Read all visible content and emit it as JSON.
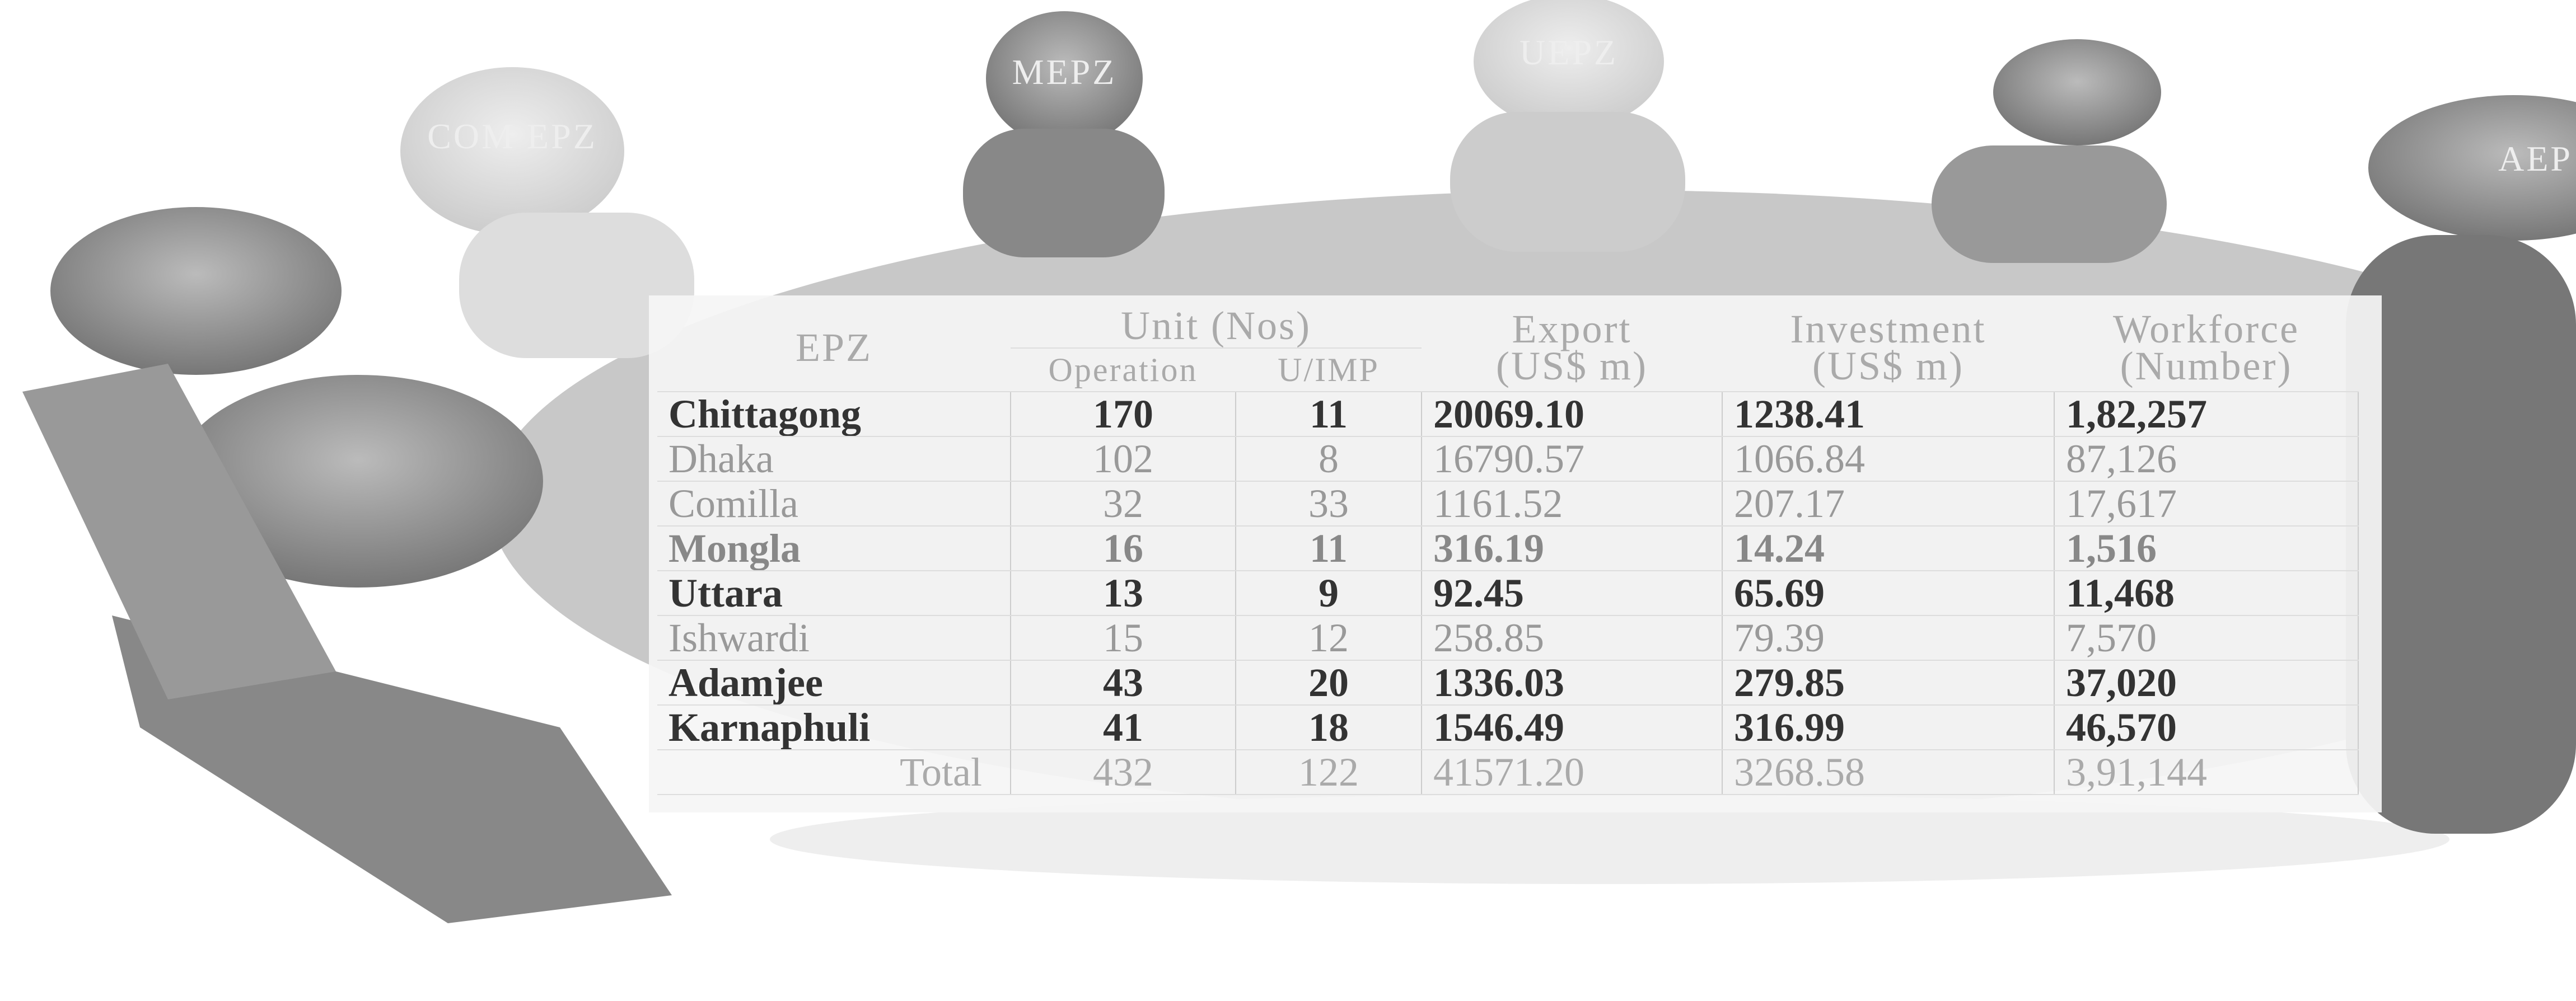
{
  "figure_labels": [
    "MEPZ",
    "UEPZ",
    "COM EPZ",
    "AEP"
  ],
  "table": {
    "header": {
      "epz": "EPZ",
      "unit": "Unit (Nos)",
      "operation": "Operation",
      "uimp": "U/IMP",
      "export": [
        "Export",
        "(US$ m)"
      ],
      "investment": [
        "Investment",
        "(US$ m)"
      ],
      "workforce": [
        "Workforce",
        "(Number)"
      ]
    },
    "rows": [
      [
        "Chittagong",
        "170",
        "11",
        "20069.10",
        "1238.41",
        "1,82,257"
      ],
      [
        "Dhaka",
        "102",
        "8",
        "16790.57",
        "1066.84",
        "87,126"
      ],
      [
        "Comilla",
        "32",
        "33",
        "1161.52",
        "207.17",
        "17,617"
      ],
      [
        "Mongla",
        "16",
        "11",
        "316.19",
        "14.24",
        "1,516"
      ],
      [
        "Uttara",
        "13",
        "9",
        "92.45",
        "65.69",
        "11,468"
      ],
      [
        "Ishwardi",
        "15",
        "12",
        "258.85",
        "79.39",
        "7,570"
      ],
      [
        "Adamjee",
        "43",
        "20",
        "1336.03",
        "279.85",
        "37,020"
      ],
      [
        "Karnaphuli",
        "41",
        "18",
        "1546.49",
        "316.99",
        "46,570"
      ]
    ],
    "total": [
      "Total",
      "432",
      "122",
      "41571.20",
      "3268.58",
      "3,91,144"
    ]
  }
}
